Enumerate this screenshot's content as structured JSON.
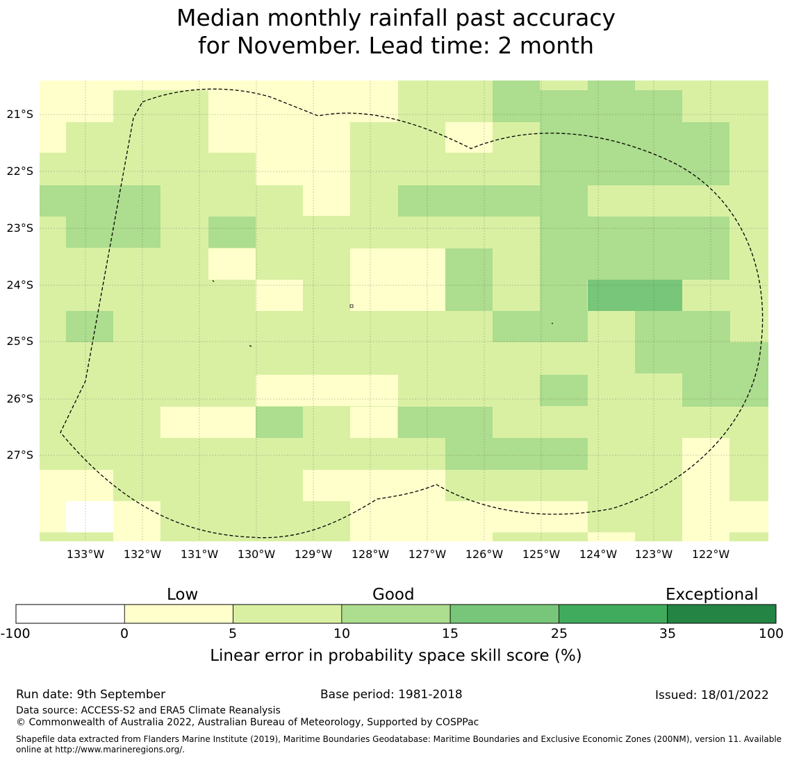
{
  "title_line1": "Median monthly rainfall past accuracy",
  "title_line2": "for November. Lead time: 2 month",
  "map": {
    "lat_labels": [
      "21°S",
      "22°S",
      "23°S",
      "24°S",
      "25°S",
      "26°S",
      "27°S"
    ],
    "lon_labels": [
      "133°W",
      "132°W",
      "131°W",
      "130°W",
      "129°W",
      "128°W",
      "127°W",
      "126°W",
      "125°W",
      "124°W",
      "123°W",
      "122°W"
    ],
    "boundary_style": "dashed"
  },
  "legend": {
    "category_labels": [
      "Low",
      "Good",
      "Exceptional"
    ],
    "ticks": [
      "-100",
      "0",
      "5",
      "10",
      "15",
      "25",
      "35",
      "100"
    ],
    "colors": [
      "#ffffff",
      "#ffffcc",
      "#d9f0a3",
      "#addd8e",
      "#78c679",
      "#41ab5d",
      "#238443"
    ],
    "title": "Linear error in probability space skill score (%)"
  },
  "footer": {
    "run_date": "Run date: 9th September",
    "base_period": "Base period: 1981-2018",
    "issued": "Issued: 18/01/2022",
    "data_source": "Data source: ACCESS-S2 and ERA5 Climate Reanalysis",
    "copyright": "© Commonwealth of Australia 2022, Australian Bureau of Meteorology, Supported by COSPPac",
    "shapefile_line1": "Shapefile data extracted from Flanders Marine Institute (2019), Maritime Boundaries Geodatabase: Maritime Boundaries and Exclusive Economic Zones (200NM), version 11. Available",
    "shapefile_line2": "online at http://www.marineregions.org/."
  }
}
